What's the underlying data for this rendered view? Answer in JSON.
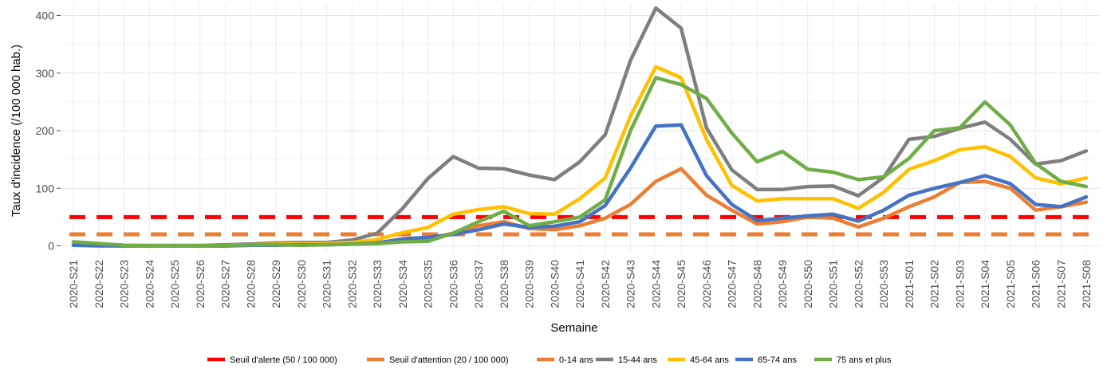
{
  "chart_data": {
    "type": "line",
    "xlabel": "Semaine",
    "ylabel": "Taux d'incidence (/100 000 hab.)",
    "ylim": [
      -10,
      420
    ],
    "y_ticks": [
      0,
      100,
      200,
      300,
      400
    ],
    "grid": true,
    "legend_position": "bottom",
    "x": [
      "2020-S21",
      "2020-S22",
      "2020-S23",
      "2020-S24",
      "2020-S25",
      "2020-S26",
      "2020-S27",
      "2020-S28",
      "2020-S29",
      "2020-S30",
      "2020-S31",
      "2020-S32",
      "2020-S33",
      "2020-S34",
      "2020-S35",
      "2020-S36",
      "2020-S37",
      "2020-S38",
      "2020-S39",
      "2020-S40",
      "2020-S41",
      "2020-S42",
      "2020-S43",
      "2020-S44",
      "2020-S45",
      "2020-S46",
      "2020-S47",
      "2020-S48",
      "2020-S49",
      "2020-S50",
      "2020-S51",
      "2020-S52",
      "2020-S53",
      "2021-S01",
      "2021-S02",
      "2021-S03",
      "2021-S04",
      "2021-S05",
      "2021-S06",
      "2021-S07",
      "2021-S08"
    ],
    "thresholds": [
      {
        "name": "Seuil d'alerte (50 / 100 000)",
        "value": 50,
        "color": "#ff0000"
      },
      {
        "name": "Seuil d'attention (20 / 100 000)",
        "value": 20,
        "color": "#ed7d31"
      }
    ],
    "series": [
      {
        "name": "0-14 ans",
        "color": "#ed7d31",
        "values": [
          2,
          1,
          0,
          0,
          0,
          0,
          0,
          1,
          2,
          2,
          2,
          3,
          4,
          8,
          12,
          22,
          35,
          42,
          30,
          28,
          35,
          48,
          72,
          112,
          134,
          88,
          62,
          38,
          42,
          50,
          48,
          33,
          48,
          68,
          85,
          110,
          112,
          100,
          62,
          68,
          76
        ]
      },
      {
        "name": "15-44 ans",
        "color": "#7f7f7f",
        "values": [
          5,
          3,
          1,
          1,
          1,
          1,
          2,
          3,
          5,
          6,
          6,
          10,
          22,
          65,
          117,
          155,
          135,
          134,
          123,
          115,
          146,
          193,
          322,
          413,
          378,
          205,
          132,
          98,
          98,
          103,
          104,
          87,
          119,
          185,
          190,
          204,
          215,
          185,
          142,
          148,
          165
        ]
      },
      {
        "name": "45-64 ans",
        "color": "#ffc000",
        "values": [
          4,
          2,
          1,
          1,
          1,
          1,
          1,
          2,
          3,
          4,
          4,
          6,
          11,
          23,
          32,
          55,
          63,
          68,
          56,
          55,
          82,
          118,
          225,
          311,
          292,
          185,
          105,
          78,
          82,
          82,
          82,
          65,
          93,
          133,
          148,
          167,
          172,
          155,
          118,
          108,
          118
        ]
      },
      {
        "name": "65-74 ans",
        "color": "#4472c4",
        "values": [
          1,
          0,
          0,
          0,
          0,
          0,
          0,
          1,
          1,
          2,
          2,
          3,
          5,
          12,
          15,
          20,
          28,
          38,
          32,
          34,
          42,
          70,
          135,
          208,
          210,
          122,
          72,
          44,
          48,
          52,
          55,
          43,
          62,
          88,
          100,
          110,
          122,
          108,
          72,
          68,
          85
        ]
      },
      {
        "name": "75 ans et plus",
        "color": "#70ad47",
        "values": [
          7,
          4,
          1,
          0,
          0,
          0,
          1,
          2,
          2,
          1,
          2,
          3,
          4,
          7,
          8,
          22,
          42,
          60,
          35,
          42,
          50,
          80,
          200,
          292,
          280,
          256,
          196,
          146,
          164,
          133,
          128,
          115,
          120,
          152,
          200,
          205,
          250,
          210,
          143,
          112,
          103
        ]
      }
    ]
  }
}
